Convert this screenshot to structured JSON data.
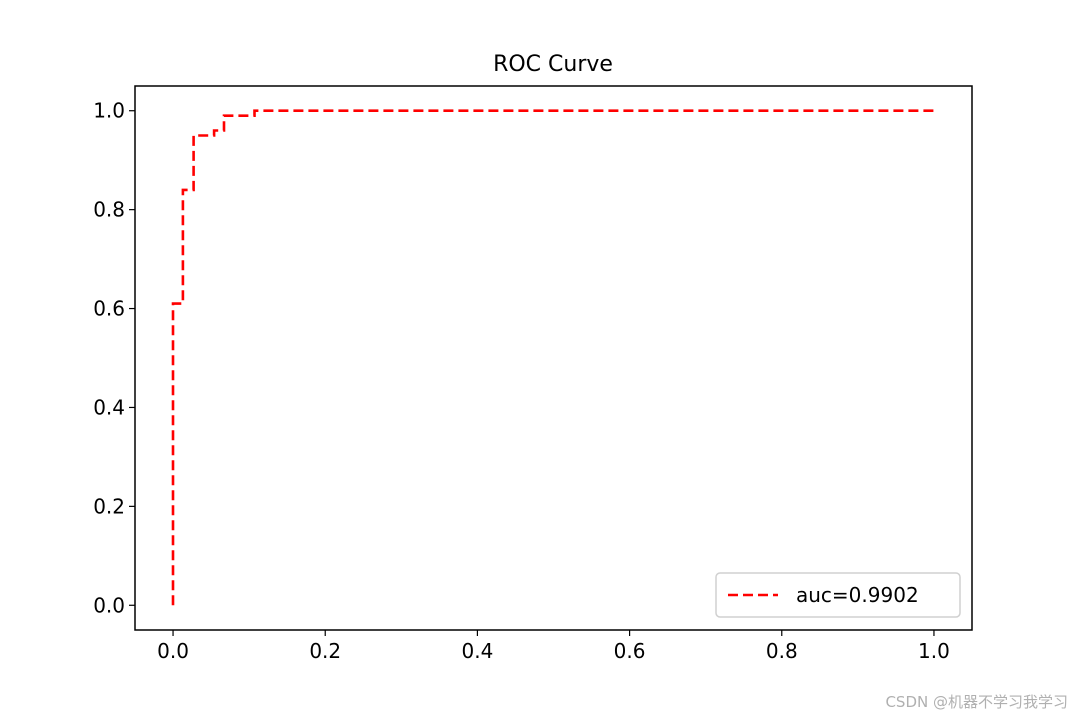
{
  "chart_data": {
    "type": "line",
    "title": "ROC Curve",
    "xlabel": "",
    "ylabel": "",
    "xlim": [
      -0.05,
      1.05
    ],
    "ylim": [
      -0.05,
      1.05
    ],
    "xticks": [
      0.0,
      0.2,
      0.4,
      0.6,
      0.8,
      1.0
    ],
    "yticks": [
      0.0,
      0.2,
      0.4,
      0.6,
      0.8,
      1.0
    ],
    "tick_labels_x": [
      "0.0",
      "0.2",
      "0.4",
      "0.6",
      "0.8",
      "1.0"
    ],
    "tick_labels_y": [
      "0.0",
      "0.2",
      "0.4",
      "0.6",
      "0.8",
      "1.0"
    ],
    "grid": false,
    "legend_position": "lower-right",
    "series": [
      {
        "name": "auc=0.9902",
        "color": "#ff0000",
        "line_style": "dashed",
        "x": [
          0.0,
          0.0,
          0.013,
          0.013,
          0.027,
          0.027,
          0.054,
          0.054,
          0.067,
          0.067,
          0.107,
          0.107,
          1.0
        ],
        "y": [
          0.0,
          0.61,
          0.61,
          0.84,
          0.84,
          0.95,
          0.95,
          0.96,
          0.96,
          0.99,
          0.99,
          1.0,
          1.0
        ]
      }
    ]
  },
  "watermark": "CSDN @机器不学习我学习"
}
